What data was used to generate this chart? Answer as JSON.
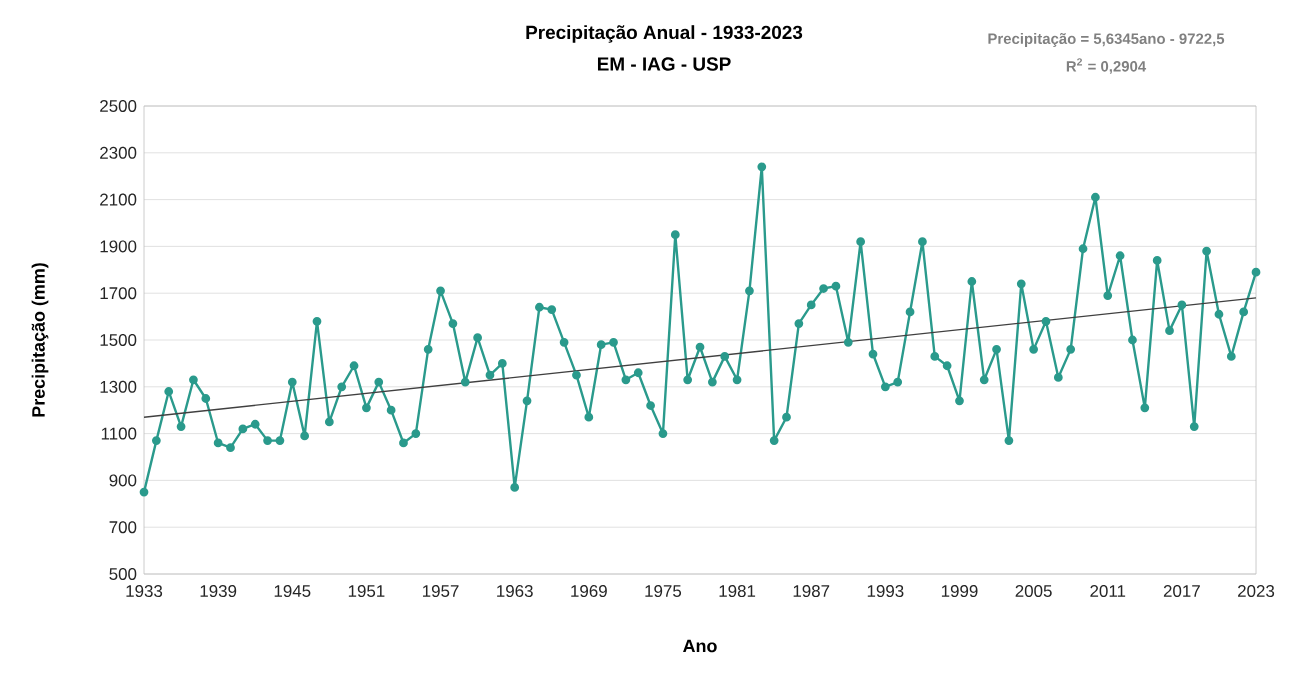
{
  "chart_data": {
    "type": "line",
    "title": "Precipitação Anual - 1933-2023",
    "subtitle": "EM - IAG - USP",
    "xlabel": "Ano",
    "ylabel": "Precipitação (mm)",
    "annotations": [
      "Precipitação = 5,6345ano - 9722,5",
      "R$^{2}$ = 0,2904"
    ],
    "x": [
      1933,
      1934,
      1935,
      1936,
      1937,
      1938,
      1939,
      1940,
      1941,
      1942,
      1943,
      1944,
      1945,
      1946,
      1947,
      1948,
      1949,
      1950,
      1951,
      1952,
      1953,
      1954,
      1955,
      1956,
      1957,
      1958,
      1959,
      1960,
      1961,
      1962,
      1963,
      1964,
      1965,
      1966,
      1967,
      1968,
      1969,
      1970,
      1971,
      1972,
      1973,
      1974,
      1975,
      1976,
      1977,
      1978,
      1979,
      1980,
      1981,
      1982,
      1983,
      1984,
      1985,
      1986,
      1987,
      1988,
      1989,
      1990,
      1991,
      1992,
      1993,
      1994,
      1995,
      1996,
      1997,
      1998,
      1999,
      2000,
      2001,
      2002,
      2003,
      2004,
      2005,
      2006,
      2007,
      2008,
      2009,
      2010,
      2011,
      2012,
      2013,
      2014,
      2015,
      2016,
      2017,
      2018,
      2019,
      2020,
      2021,
      2022,
      2023
    ],
    "series": [
      {
        "color": "#2a9a8c",
        "values": [
          850,
          1070,
          1280,
          1130,
          1330,
          1250,
          1060,
          1040,
          1120,
          1140,
          1070,
          1070,
          1320,
          1090,
          1580,
          1150,
          1300,
          1390,
          1210,
          1320,
          1200,
          1060,
          1100,
          1460,
          1710,
          1570,
          1320,
          1510,
          1350,
          1400,
          870,
          1240,
          1640,
          1630,
          1490,
          1350,
          1170,
          1480,
          1490,
          1330,
          1360,
          1220,
          1100,
          1950,
          1330,
          1470,
          1320,
          1430,
          1330,
          1710,
          2240,
          1070,
          1170,
          1570,
          1650,
          1720,
          1730,
          1490,
          1920,
          1440,
          1300,
          1320,
          1620,
          1920,
          1430,
          1390,
          1240,
          1750,
          1330,
          1460,
          1070,
          1740,
          1460,
          1580,
          1340,
          1460,
          1890,
          2110,
          1690,
          1860,
          1500,
          1210,
          1840,
          1540,
          1650,
          1130,
          1880,
          1610,
          1430,
          1620,
          1790
        ]
      },
      {
        "type": "line",
        "color": "#404040",
        "marker": "none",
        "x": [
          1933,
          2023
        ],
        "values": [
          1170,
          1680
        ]
      }
    ],
    "xlim": [
      1933,
      2023
    ],
    "xticks": [
      1933,
      1939,
      1945,
      1951,
      1957,
      1963,
      1969,
      1975,
      1981,
      1987,
      1993,
      1999,
      2005,
      2011,
      2017,
      2023
    ],
    "ylim": [
      500,
      2500
    ],
    "yticks": [
      500,
      700,
      900,
      1100,
      1300,
      1500,
      1700,
      1900,
      2100,
      2300,
      2500
    ],
    "grid": "y",
    "marker": "circle"
  }
}
